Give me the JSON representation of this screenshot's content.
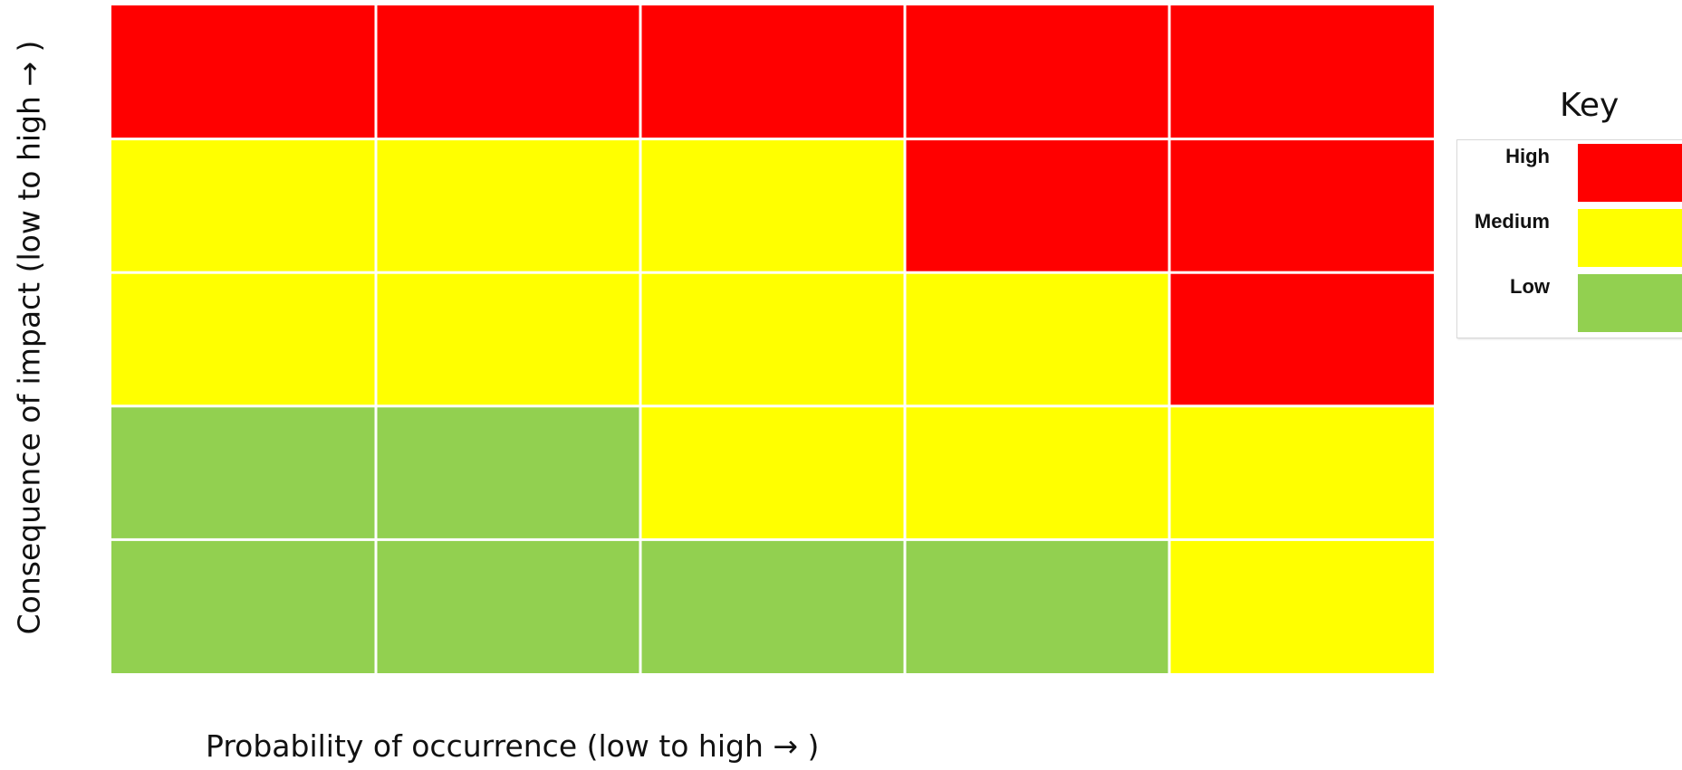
{
  "chart_data": {
    "type": "heatmap",
    "title": "",
    "xlabel": "Probability of occurrence (low to high → )",
    "ylabel": "Consequence of impact (low to high → )",
    "rows_top_to_bottom": [
      [
        "High",
        "High",
        "High",
        "High",
        "High"
      ],
      [
        "Medium",
        "Medium",
        "Medium",
        "High",
        "High"
      ],
      [
        "Medium",
        "Medium",
        "Medium",
        "Medium",
        "High"
      ],
      [
        "Low",
        "Low",
        "Medium",
        "Medium",
        "Medium"
      ],
      [
        "Low",
        "Low",
        "Low",
        "Low",
        "Medium"
      ]
    ],
    "legend": {
      "title": "Key",
      "placement": "right",
      "items": [
        {
          "label": "High",
          "color": "#ff0000"
        },
        {
          "label": "Medium",
          "color": "#ffff00"
        },
        {
          "label": "Low",
          "color": "#92d050"
        }
      ]
    },
    "colors": {
      "High": "#ff0000",
      "Medium": "#ffff00",
      "Low": "#92d050",
      "grid_line": "#ffffff"
    }
  }
}
